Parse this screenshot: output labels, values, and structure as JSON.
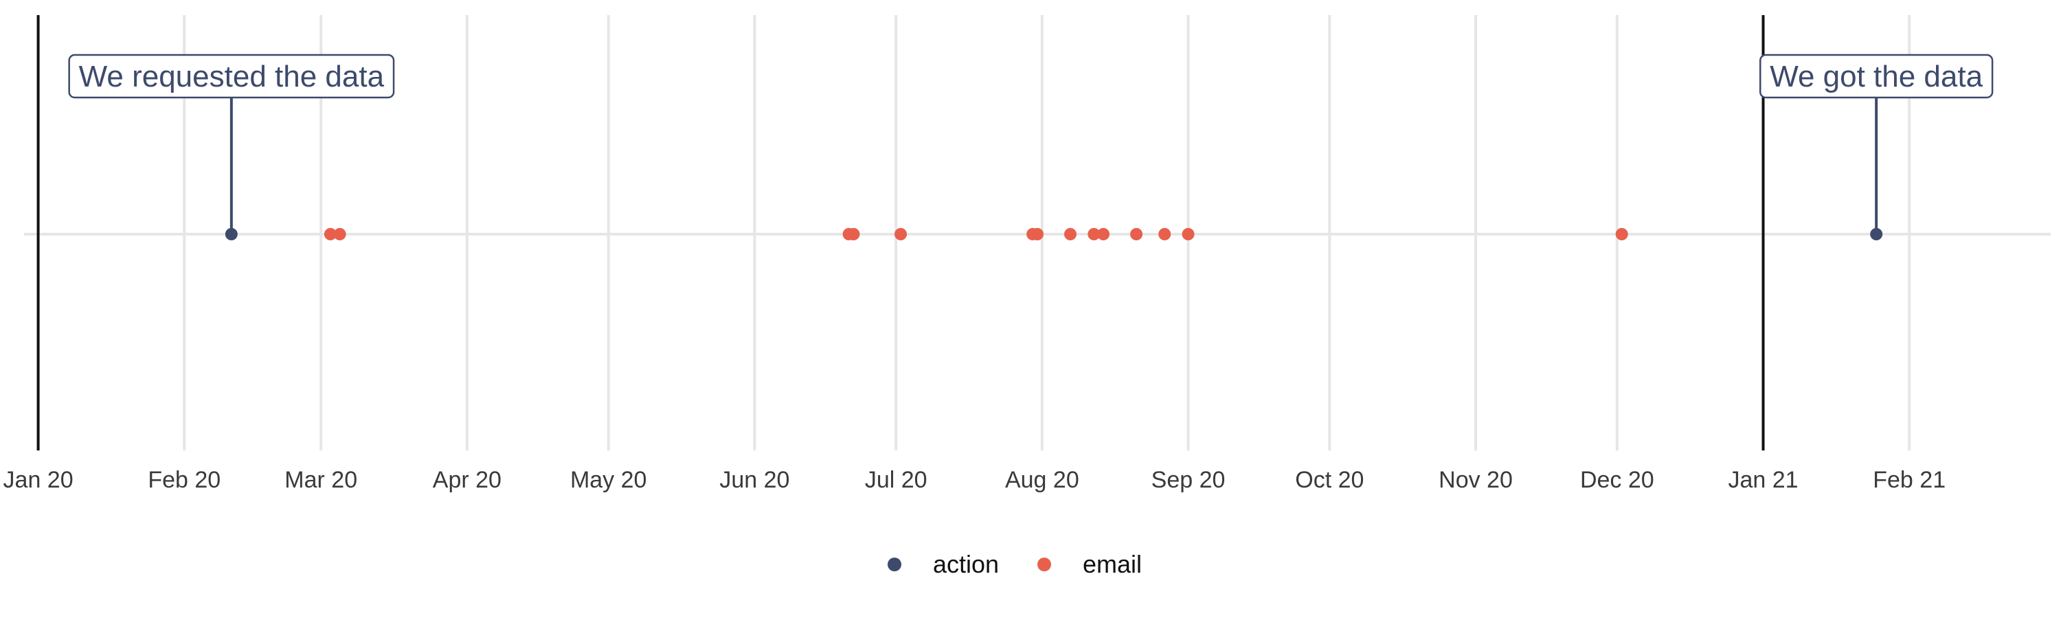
{
  "chart_data": {
    "type": "scatter",
    "title": "",
    "xlabel": "",
    "ylabel": "",
    "x_axis": {
      "type": "date",
      "range": [
        "2019-12-29",
        "2021-03-03"
      ],
      "ticks": [
        {
          "date": "2020-01-01",
          "label": "Jan 20"
        },
        {
          "date": "2020-02-01",
          "label": "Feb 20"
        },
        {
          "date": "2020-03-01",
          "label": "Mar 20"
        },
        {
          "date": "2020-04-01",
          "label": "Apr 20"
        },
        {
          "date": "2020-05-01",
          "label": "May 20"
        },
        {
          "date": "2020-06-01",
          "label": "Jun 20"
        },
        {
          "date": "2020-07-01",
          "label": "Jul 20"
        },
        {
          "date": "2020-08-01",
          "label": "Aug 20"
        },
        {
          "date": "2020-09-01",
          "label": "Sep 20"
        },
        {
          "date": "2020-10-01",
          "label": "Oct 20"
        },
        {
          "date": "2020-11-01",
          "label": "Nov 20"
        },
        {
          "date": "2020-12-01",
          "label": "Dec 20"
        },
        {
          "date": "2021-01-01",
          "label": "Jan 21"
        },
        {
          "date": "2021-02-01",
          "label": "Feb 21"
        }
      ]
    },
    "grid": true,
    "legend_position": "bottom",
    "reference_lines": [
      "2020-01-01",
      "2021-01-01"
    ],
    "series": [
      {
        "name": "action",
        "color": "#3d4a6b",
        "points": [
          "2020-02-11",
          "2021-01-25"
        ]
      },
      {
        "name": "email",
        "color": "#e8604c",
        "points": [
          "2020-03-03",
          "2020-03-05",
          "2020-06-21",
          "2020-06-22",
          "2020-07-02",
          "2020-07-30",
          "2020-07-31",
          "2020-08-07",
          "2020-08-12",
          "2020-08-14",
          "2020-08-21",
          "2020-08-27",
          "2020-09-01",
          "2020-12-02"
        ]
      }
    ],
    "annotations": [
      {
        "text": "We requested the data",
        "date": "2020-02-11"
      },
      {
        "text": "We got the data",
        "date": "2021-01-25"
      }
    ]
  }
}
